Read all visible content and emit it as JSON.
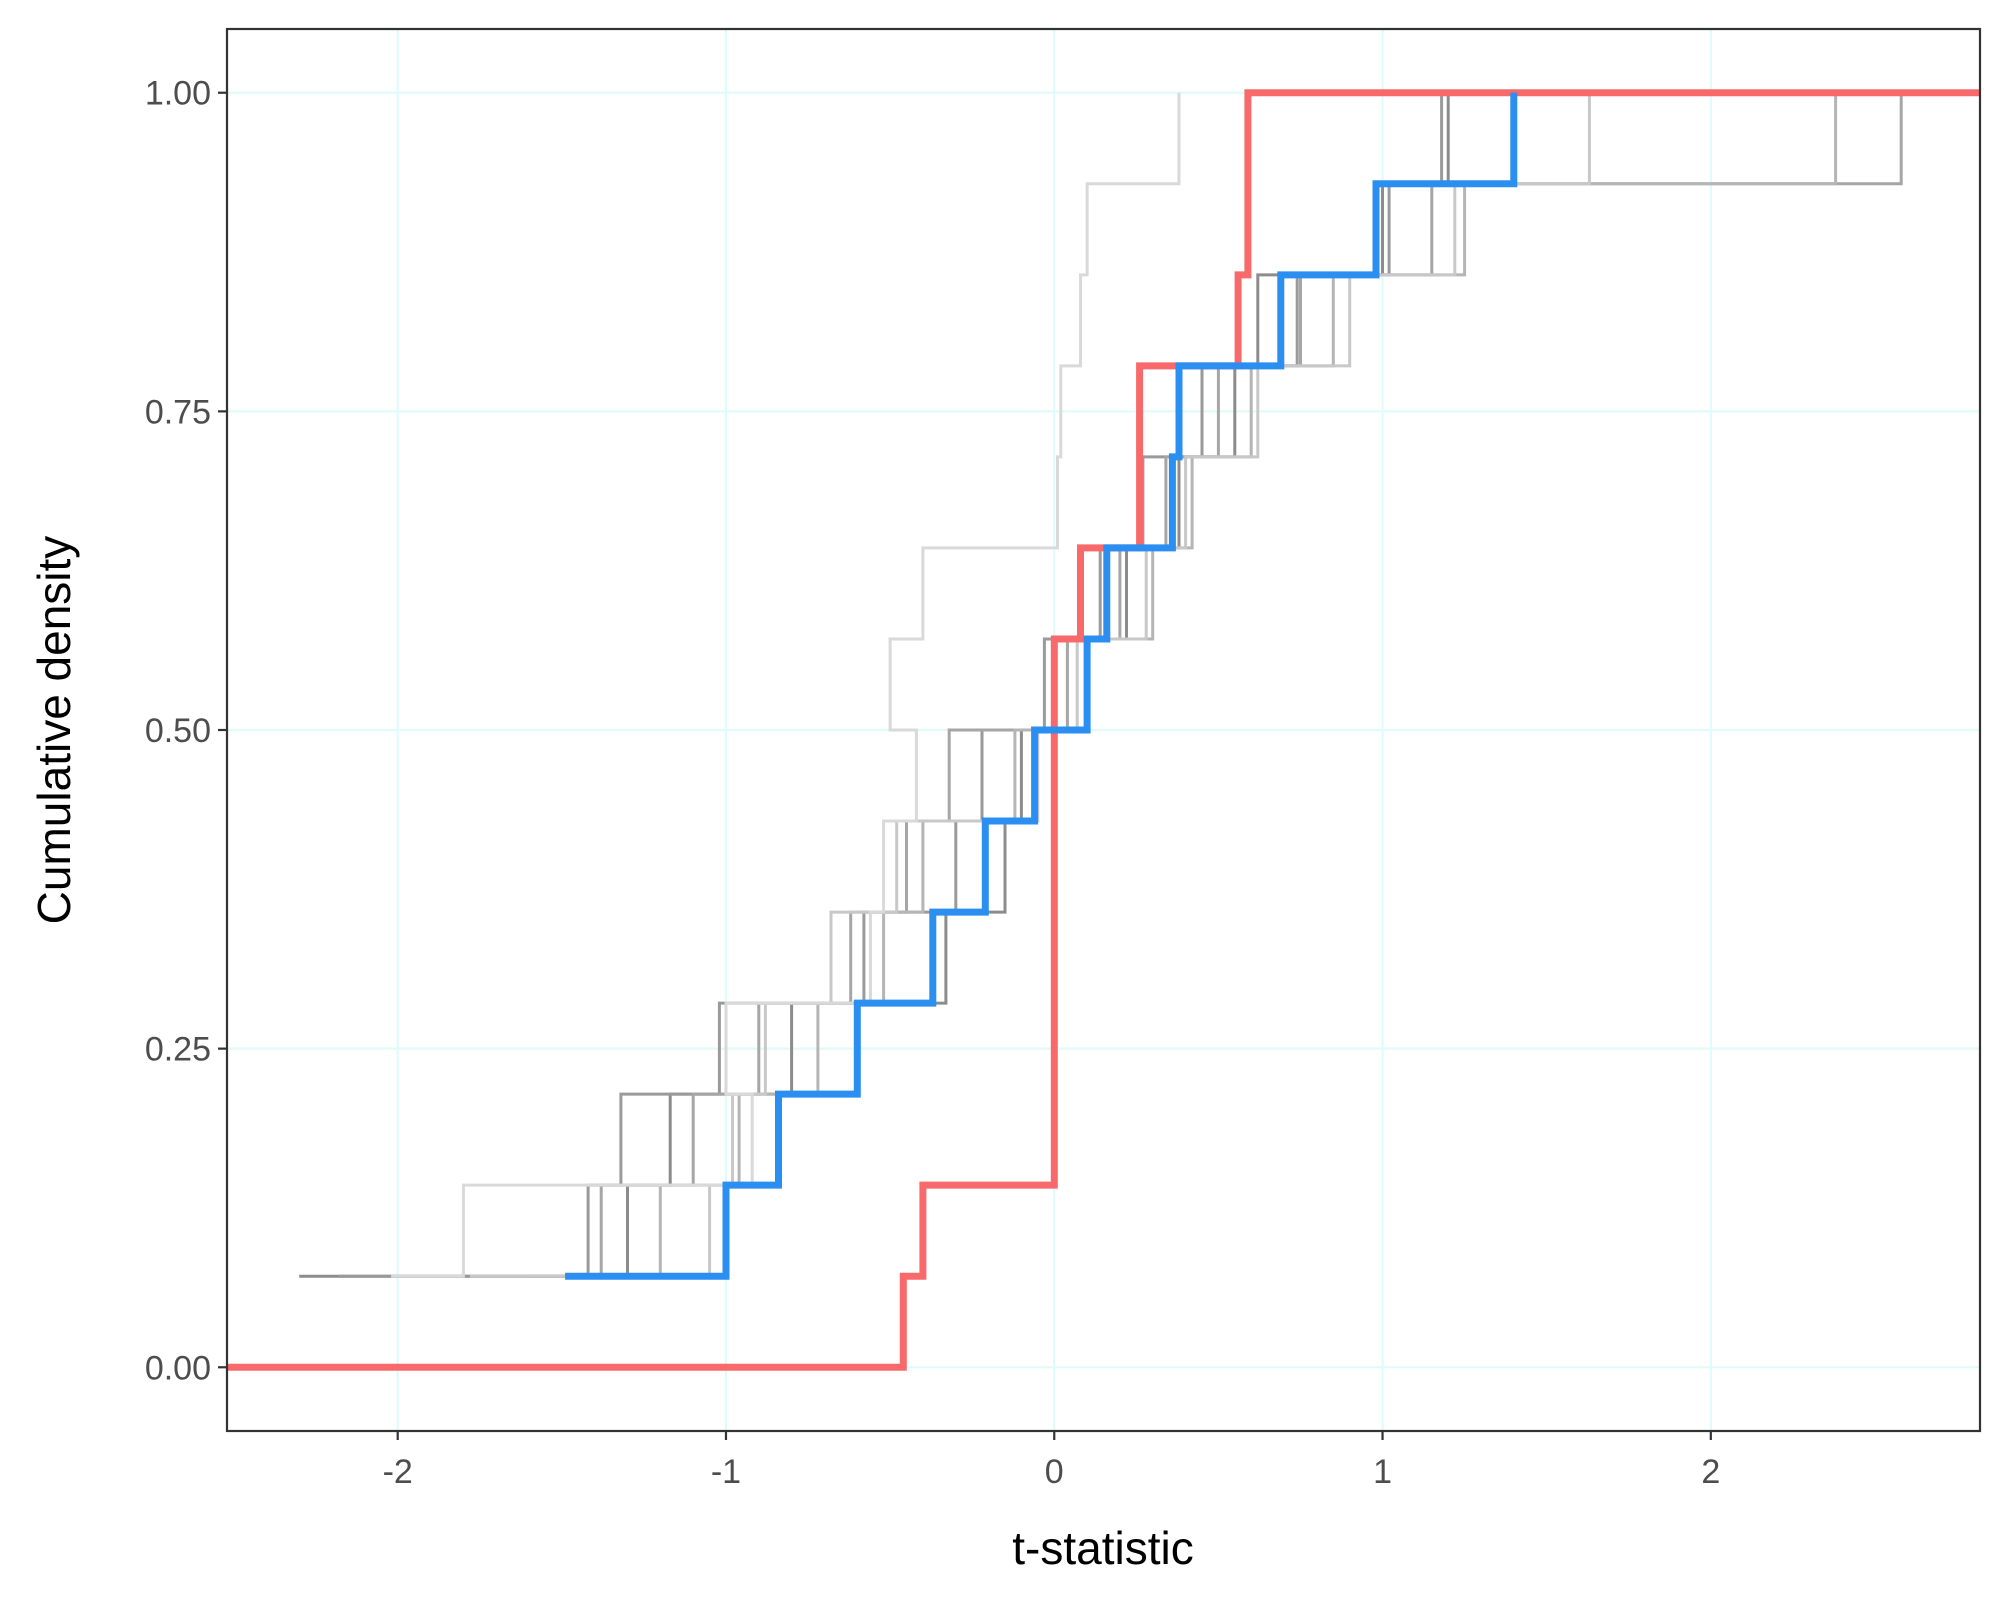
{
  "chart_data": {
    "type": "line",
    "subtype": "step (empirical CDF)",
    "xlabel": "t-statistic",
    "ylabel": "Cumulative density",
    "xlim": [
      -2.52,
      2.82
    ],
    "ylim": [
      -0.05,
      1.05
    ],
    "x_ticks": [
      {
        "value": -2,
        "label": "-2"
      },
      {
        "value": -1,
        "label": "-1"
      },
      {
        "value": 0,
        "label": "0"
      },
      {
        "value": 1,
        "label": "1"
      },
      {
        "value": 2,
        "label": "2"
      }
    ],
    "y_ticks": [
      {
        "value": 0,
        "label": "0.00"
      },
      {
        "value": 0.25,
        "label": "0.25"
      },
      {
        "value": 0.5,
        "label": "0.50"
      },
      {
        "value": 0.75,
        "label": "0.75"
      },
      {
        "value": 1,
        "label": "1.00"
      }
    ],
    "grid": true,
    "legend": "none",
    "colors": {
      "red_series": "#f8696b",
      "blue_series": "#2b8ff2",
      "grey_dark": "#8c8c8c",
      "grey_mid": "#b0b0b0",
      "grey_light": "#d9d9d9",
      "grid": "#e0fbfb",
      "panel_border": "#333333"
    },
    "series": [
      {
        "color": "#f8696b",
        "emphasis": "highlight",
        "x": [
          -2.52,
          -0.46,
          -0.4,
          -0.01,
          0.0,
          0.08,
          0.26,
          0.56,
          0.59,
          2.82
        ],
        "y": [
          0.0,
          0.0714,
          0.1429,
          0.1429,
          0.5714,
          0.6429,
          0.7857,
          0.8571,
          1.0,
          1.0
        ]
      },
      {
        "color": "#2b8ff2",
        "emphasis": "highlight",
        "x": [
          -1.49,
          -1.0,
          -0.84,
          -0.6,
          -0.37,
          -0.21,
          -0.06,
          0.1,
          0.16,
          0.36,
          0.38,
          0.69,
          0.98,
          1.4
        ],
        "y": [
          0.0714,
          0.1429,
          0.2143,
          0.2857,
          0.3571,
          0.4286,
          0.5,
          0.5714,
          0.6429,
          0.7143,
          0.7857,
          0.8571,
          0.9286,
          1.0
        ]
      },
      {
        "color": "#8c8c8c",
        "emphasis": "background",
        "x": [
          -2.3,
          -1.3,
          -1.17,
          -0.8,
          -0.33,
          -0.15,
          -0.1,
          0.0,
          0.22,
          0.38,
          0.55,
          0.62,
          1.0,
          1.2
        ],
        "y": [
          0.0714,
          0.1429,
          0.2143,
          0.2857,
          0.3571,
          0.4286,
          0.5,
          0.5714,
          0.6429,
          0.7143,
          0.7857,
          0.8571,
          0.9286,
          1.0
        ]
      },
      {
        "color": "#9a9a9a",
        "emphasis": "background",
        "x": [
          -2.18,
          -1.42,
          -1.32,
          -1.02,
          -0.58,
          -0.3,
          -0.22,
          -0.03,
          0.14,
          0.27,
          0.45,
          0.74,
          1.02,
          1.18
        ],
        "y": [
          0.0714,
          0.1429,
          0.2143,
          0.2857,
          0.3571,
          0.4286,
          0.5,
          0.5714,
          0.6429,
          0.7143,
          0.7857,
          0.8571,
          0.9286,
          1.0
        ]
      },
      {
        "color": "#a6a6a6",
        "emphasis": "background",
        "x": [
          -1.6,
          -1.38,
          -1.1,
          -0.9,
          -0.62,
          -0.45,
          -0.32,
          0.04,
          0.2,
          0.34,
          0.5,
          0.75,
          1.15,
          2.58
        ],
        "y": [
          0.0714,
          0.1429,
          0.2143,
          0.2857,
          0.3571,
          0.4286,
          0.5,
          0.5714,
          0.6429,
          0.7143,
          0.7857,
          0.8571,
          0.9286,
          1.0
        ]
      },
      {
        "color": "#b5b5b5",
        "emphasis": "background",
        "x": [
          -1.36,
          -1.2,
          -0.96,
          -0.72,
          -0.52,
          -0.4,
          -0.12,
          0.0,
          0.3,
          0.42,
          0.6,
          0.85,
          1.25,
          2.38
        ],
        "y": [
          0.0714,
          0.1429,
          0.2143,
          0.2857,
          0.3571,
          0.4286,
          0.5,
          0.5714,
          0.6429,
          0.7143,
          0.7857,
          0.8571,
          0.9286,
          1.0
        ]
      },
      {
        "color": "#c8c8c8",
        "emphasis": "background",
        "x": [
          -1.78,
          -1.05,
          -0.98,
          -0.88,
          -0.68,
          -0.48,
          -0.05,
          0.07,
          0.28,
          0.4,
          0.62,
          0.9,
          1.22,
          1.63
        ],
        "y": [
          0.0714,
          0.1429,
          0.2143,
          0.2857,
          0.3571,
          0.4286,
          0.5,
          0.5714,
          0.6429,
          0.7143,
          0.7857,
          0.8571,
          0.9286,
          1.0
        ]
      },
      {
        "color": "#d9d9d9",
        "emphasis": "background",
        "x": [
          -2.02,
          -1.8,
          -0.92,
          -1.0,
          -0.56,
          -0.52,
          -0.42,
          -0.5,
          -0.4,
          0.01,
          0.02,
          0.08,
          0.1,
          0.38
        ],
        "y": [
          0.0714,
          0.1429,
          0.2143,
          0.2857,
          0.3571,
          0.4286,
          0.5,
          0.5714,
          0.6429,
          0.7143,
          0.7857,
          0.8571,
          0.9286,
          1.0
        ]
      }
    ]
  }
}
